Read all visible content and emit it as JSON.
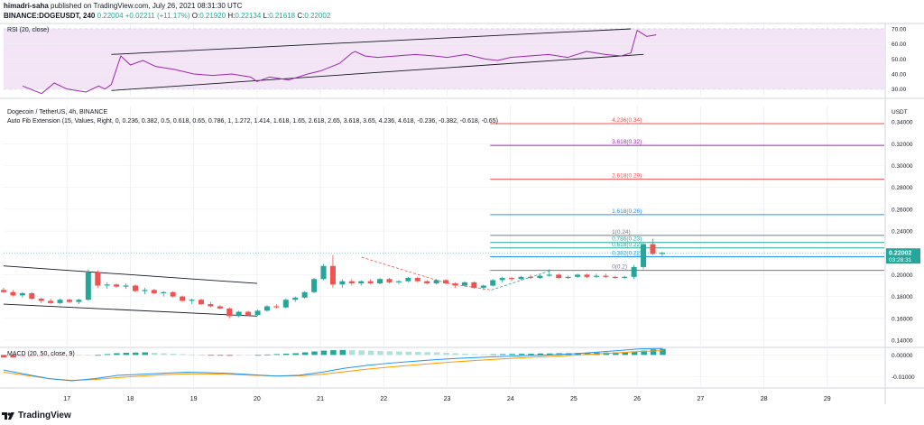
{
  "header": {
    "author": "himadri-saha",
    "published_text": "published on TradingView.com, July 26, 2021 08:31:30 UTC",
    "symbol": "BINANCE:DOGEUSDT, 240",
    "last": "0.22004",
    "change": "+0.02211 (+11.17%)",
    "o_label": "O:",
    "o": "0.21920",
    "h_label": "H:",
    "h": "0.22134",
    "l_label": "L:",
    "l": "0.21618",
    "c_label": "C:",
    "c": "0.22002"
  },
  "footer": {
    "brand": "TradingView"
  },
  "colors": {
    "up": "#26a69a",
    "down": "#ef5350",
    "rsi": "#9c27b0",
    "rsi_band": "#f3e5f5",
    "macd": "#2196f3",
    "signal": "#ff9800",
    "grid": "#eef0f3"
  },
  "chart_data": [
    {
      "type": "line",
      "panel": "rsi",
      "title": "RSI (20, close)",
      "y_ticks": [
        "70.00",
        "60.00",
        "50.00",
        "40.00",
        "30.00"
      ],
      "ylim": [
        25,
        73
      ],
      "band": [
        30,
        70
      ],
      "x": [
        16.3,
        16.6,
        16.8,
        17.0,
        17.3,
        17.5,
        17.6,
        17.7,
        17.85,
        18.0,
        18.2,
        18.4,
        18.7,
        19.0,
        19.3,
        19.6,
        19.9,
        20.0,
        20.2,
        20.5,
        20.8,
        21.0,
        21.3,
        21.5,
        21.55,
        21.7,
        21.9,
        22.2,
        22.5,
        22.8,
        23.0,
        23.3,
        23.6,
        23.8,
        24.0,
        24.3,
        24.6,
        24.9,
        25.2,
        25.5,
        25.75,
        25.9,
        26.0,
        26.15,
        26.3
      ],
      "values": [
        32,
        27,
        34,
        30,
        28,
        32,
        30,
        33,
        52,
        46,
        49,
        45,
        43,
        40,
        39,
        40,
        38,
        35,
        38,
        36,
        40,
        42,
        47,
        54,
        55,
        52,
        51,
        52,
        53,
        52,
        51,
        53,
        50,
        49,
        51,
        52,
        53,
        51,
        55,
        53,
        52,
        54,
        69,
        65,
        66
      ],
      "trendlines": [
        {
          "x": [
            17.7,
            25.9
          ],
          "y": [
            53,
            70
          ]
        },
        {
          "x": [
            17.7,
            26.1
          ],
          "y": [
            29,
            53
          ]
        }
      ]
    },
    {
      "type": "candlestick",
      "panel": "price",
      "title": "Dogecoin / TetherUS, 4h, BINANCE",
      "subtitle": "Auto Fib Extension (15, Values, Right, 0, 0.236, 0.382, 0.5, 0.618, 0.65, 0.786, 1, 1.272, 1.414, 1.618, 1.65, 2.618, 2.65, 3.618, 3.65, 4.236, 4.618, -0.236, -0.382, -0.618, -0.65)",
      "y_ticks": [
        "0.34000",
        "0.32000",
        "0.30000",
        "0.28000",
        "0.26000",
        "0.24000",
        "0.20000",
        "0.18000",
        "0.16000",
        "0.14000"
      ],
      "axis_unit": "USDT",
      "ylim": [
        0.135,
        0.355
      ],
      "last_price": "0.22002",
      "countdown": "03:28:31",
      "x_ticks": [
        "17",
        "18",
        "19",
        "20",
        "21",
        "22",
        "23",
        "24",
        "25",
        "26",
        "27",
        "28",
        "29"
      ],
      "ohlc": [
        [
          0.186,
          0.188,
          0.183,
          0.184
        ],
        [
          0.184,
          0.186,
          0.18,
          0.181
        ],
        [
          0.181,
          0.184,
          0.179,
          0.183
        ],
        [
          0.183,
          0.184,
          0.177,
          0.178
        ],
        [
          0.178,
          0.179,
          0.174,
          0.176
        ],
        [
          0.176,
          0.178,
          0.173,
          0.174
        ],
        [
          0.174,
          0.178,
          0.173,
          0.177
        ],
        [
          0.177,
          0.178,
          0.174,
          0.175
        ],
        [
          0.175,
          0.178,
          0.173,
          0.177
        ],
        [
          0.177,
          0.205,
          0.176,
          0.202
        ],
        [
          0.202,
          0.204,
          0.188,
          0.19
        ],
        [
          0.19,
          0.193,
          0.187,
          0.191
        ],
        [
          0.191,
          0.192,
          0.188,
          0.189
        ],
        [
          0.189,
          0.192,
          0.187,
          0.19
        ],
        [
          0.19,
          0.191,
          0.184,
          0.185
        ],
        [
          0.185,
          0.188,
          0.182,
          0.186
        ],
        [
          0.186,
          0.187,
          0.182,
          0.183
        ],
        [
          0.183,
          0.185,
          0.18,
          0.184
        ],
        [
          0.184,
          0.185,
          0.179,
          0.18
        ],
        [
          0.18,
          0.181,
          0.175,
          0.176
        ],
        [
          0.176,
          0.178,
          0.173,
          0.177
        ],
        [
          0.177,
          0.178,
          0.172,
          0.173
        ],
        [
          0.173,
          0.175,
          0.17,
          0.171
        ],
        [
          0.171,
          0.172,
          0.168,
          0.169
        ],
        [
          0.169,
          0.17,
          0.16,
          0.162
        ],
        [
          0.162,
          0.167,
          0.161,
          0.166
        ],
        [
          0.166,
          0.167,
          0.162,
          0.163
        ],
        [
          0.163,
          0.168,
          0.162,
          0.167
        ],
        [
          0.167,
          0.172,
          0.166,
          0.171
        ],
        [
          0.171,
          0.173,
          0.169,
          0.17
        ],
        [
          0.17,
          0.178,
          0.169,
          0.177
        ],
        [
          0.177,
          0.18,
          0.175,
          0.179
        ],
        [
          0.179,
          0.185,
          0.178,
          0.184
        ],
        [
          0.184,
          0.197,
          0.183,
          0.196
        ],
        [
          0.196,
          0.21,
          0.195,
          0.208
        ],
        [
          0.208,
          0.218,
          0.188,
          0.191
        ],
        [
          0.191,
          0.196,
          0.188,
          0.194
        ],
        [
          0.194,
          0.196,
          0.19,
          0.192
        ],
        [
          0.192,
          0.195,
          0.19,
          0.194
        ],
        [
          0.194,
          0.196,
          0.191,
          0.192
        ],
        [
          0.192,
          0.197,
          0.191,
          0.196
        ],
        [
          0.196,
          0.197,
          0.192,
          0.193
        ],
        [
          0.193,
          0.195,
          0.191,
          0.194
        ],
        [
          0.194,
          0.198,
          0.193,
          0.197
        ],
        [
          0.197,
          0.198,
          0.193,
          0.194
        ],
        [
          0.194,
          0.195,
          0.191,
          0.192
        ],
        [
          0.192,
          0.196,
          0.191,
          0.195
        ],
        [
          0.195,
          0.196,
          0.191,
          0.192
        ],
        [
          0.192,
          0.193,
          0.188,
          0.19
        ],
        [
          0.19,
          0.194,
          0.189,
          0.193
        ],
        [
          0.193,
          0.194,
          0.187,
          0.188
        ],
        [
          0.188,
          0.191,
          0.186,
          0.19
        ],
        [
          0.19,
          0.196,
          0.189,
          0.195
        ],
        [
          0.195,
          0.198,
          0.193,
          0.197
        ],
        [
          0.197,
          0.198,
          0.194,
          0.196
        ],
        [
          0.196,
          0.199,
          0.195,
          0.198
        ],
        [
          0.198,
          0.2,
          0.196,
          0.197
        ],
        [
          0.197,
          0.2,
          0.196,
          0.199
        ],
        [
          0.199,
          0.205,
          0.198,
          0.2
        ],
        [
          0.2,
          0.201,
          0.196,
          0.197
        ],
        [
          0.197,
          0.199,
          0.196,
          0.198
        ],
        [
          0.198,
          0.201,
          0.197,
          0.2
        ],
        [
          0.2,
          0.201,
          0.197,
          0.198
        ],
        [
          0.198,
          0.201,
          0.197,
          0.199
        ],
        [
          0.199,
          0.201,
          0.197,
          0.198
        ],
        [
          0.198,
          0.199,
          0.196,
          0.197
        ],
        [
          0.197,
          0.199,
          0.196,
          0.198
        ],
        [
          0.198,
          0.209,
          0.196,
          0.207
        ],
        [
          0.207,
          0.229,
          0.205,
          0.228
        ],
        [
          0.228,
          0.233,
          0.218,
          0.219
        ],
        [
          0.219,
          0.221,
          0.216,
          0.22
        ]
      ],
      "bar_x_start": 16.0,
      "bar_x_step": 0.1485,
      "fib_levels": [
        {
          "label": "4.236(0.34)",
          "value": 0.3385,
          "color": "#ef5350"
        },
        {
          "label": "3.618(0.32)",
          "value": 0.3185,
          "color": "#9c27b0"
        },
        {
          "label": "2.618(0.29)",
          "value": 0.2875,
          "color": "#ef5350"
        },
        {
          "label": "1.618(0.26)",
          "value": 0.255,
          "color": "#2196f3"
        },
        {
          "label": "1(0.24)",
          "value": 0.236,
          "color": "#787b86"
        },
        {
          "label": "0.786(0.23)",
          "value": 0.2295,
          "color": "#26a69a"
        },
        {
          "label": "0.618(0.22)",
          "value": 0.2245,
          "color": "#26a69a"
        },
        {
          "label": "0.382(0.22)",
          "value": 0.2165,
          "color": "#2196f3"
        },
        {
          "label": "0(0.2)",
          "value": 0.204,
          "color": "#787b86"
        }
      ],
      "fib_x_start": 23.68,
      "trendlines": [
        {
          "x": [
            16.0,
            20.0
          ],
          "y": [
            0.208,
            0.192
          ],
          "color": "#131722"
        },
        {
          "x": [
            16.0,
            20.0
          ],
          "y": [
            0.173,
            0.162
          ],
          "color": "#131722"
        }
      ],
      "dashed": [
        {
          "x": [
            21.65,
            23.0
          ],
          "y": [
            0.216,
            0.192
          ],
          "color": "#ef5350"
        },
        {
          "x": [
            23.0,
            23.7
          ],
          "y": [
            0.192,
            0.186
          ],
          "color": "#ef5350"
        },
        {
          "x": [
            23.7,
            24.65
          ],
          "y": [
            0.186,
            0.204
          ],
          "color": "#26a69a"
        }
      ]
    },
    {
      "type": "bar",
      "panel": "macd",
      "title": "MACD (20, 50, close, 9)",
      "y_ticks": [
        "0.00000",
        "-0.01000"
      ],
      "ylim": [
        -0.0145,
        0.0035
      ],
      "x": [
        16.0,
        26.4
      ],
      "histogram": [
        -0.0012,
        -0.0012,
        -0.001,
        -0.0009,
        -0.0008,
        -0.0006,
        -0.0005,
        -0.0004,
        -0.0003,
        -0.0002,
        0.0,
        0.0004,
        0.0008,
        0.001,
        0.0011,
        0.0012,
        0.001,
        0.0008,
        0.0006,
        0.0004,
        0.0002,
        0.0001,
        -0.0001,
        -0.0003,
        -0.0004,
        -0.0002,
        -0.0001,
        0.0,
        0.0002,
        0.0004,
        0.0006,
        0.0008,
        0.0012,
        0.0016,
        0.002,
        0.0022,
        0.0023,
        0.0022,
        0.0021,
        0.002,
        0.0018,
        0.0017,
        0.0016,
        0.0015,
        0.0014,
        0.0013,
        0.0012,
        0.001,
        0.0008,
        0.0006,
        0.0004,
        0.0003,
        0.0003,
        0.0004,
        0.0005,
        0.0006,
        0.0006,
        0.0007,
        0.0007,
        0.0008,
        0.0008,
        0.0009,
        0.001,
        0.0011,
        0.0011,
        0.0012,
        0.0012,
        0.0014,
        0.002,
        0.0026,
        0.0028
      ],
      "macd_line": [
        -0.007,
        -0.009,
        -0.011,
        -0.012,
        -0.011,
        -0.0095,
        -0.009,
        -0.0085,
        -0.008,
        -0.0082,
        -0.0086,
        -0.0092,
        -0.0098,
        -0.0094,
        -0.008,
        -0.0062,
        -0.0048,
        -0.0038,
        -0.003,
        -0.0022,
        -0.0016,
        -0.0011,
        -0.0007,
        -0.0003,
        0.0,
        0.0005,
        0.0012,
        0.002,
        0.0028,
        0.003
      ],
      "signal_line": [
        -0.008,
        -0.0095,
        -0.011,
        -0.0118,
        -0.0114,
        -0.0105,
        -0.0098,
        -0.0092,
        -0.0088,
        -0.0088,
        -0.009,
        -0.0094,
        -0.0098,
        -0.0097,
        -0.009,
        -0.0078,
        -0.0066,
        -0.0056,
        -0.0047,
        -0.0039,
        -0.0031,
        -0.0024,
        -0.0018,
        -0.0012,
        -0.0007,
        -0.0002,
        0.0004,
        0.001,
        0.0016,
        0.002
      ]
    }
  ]
}
